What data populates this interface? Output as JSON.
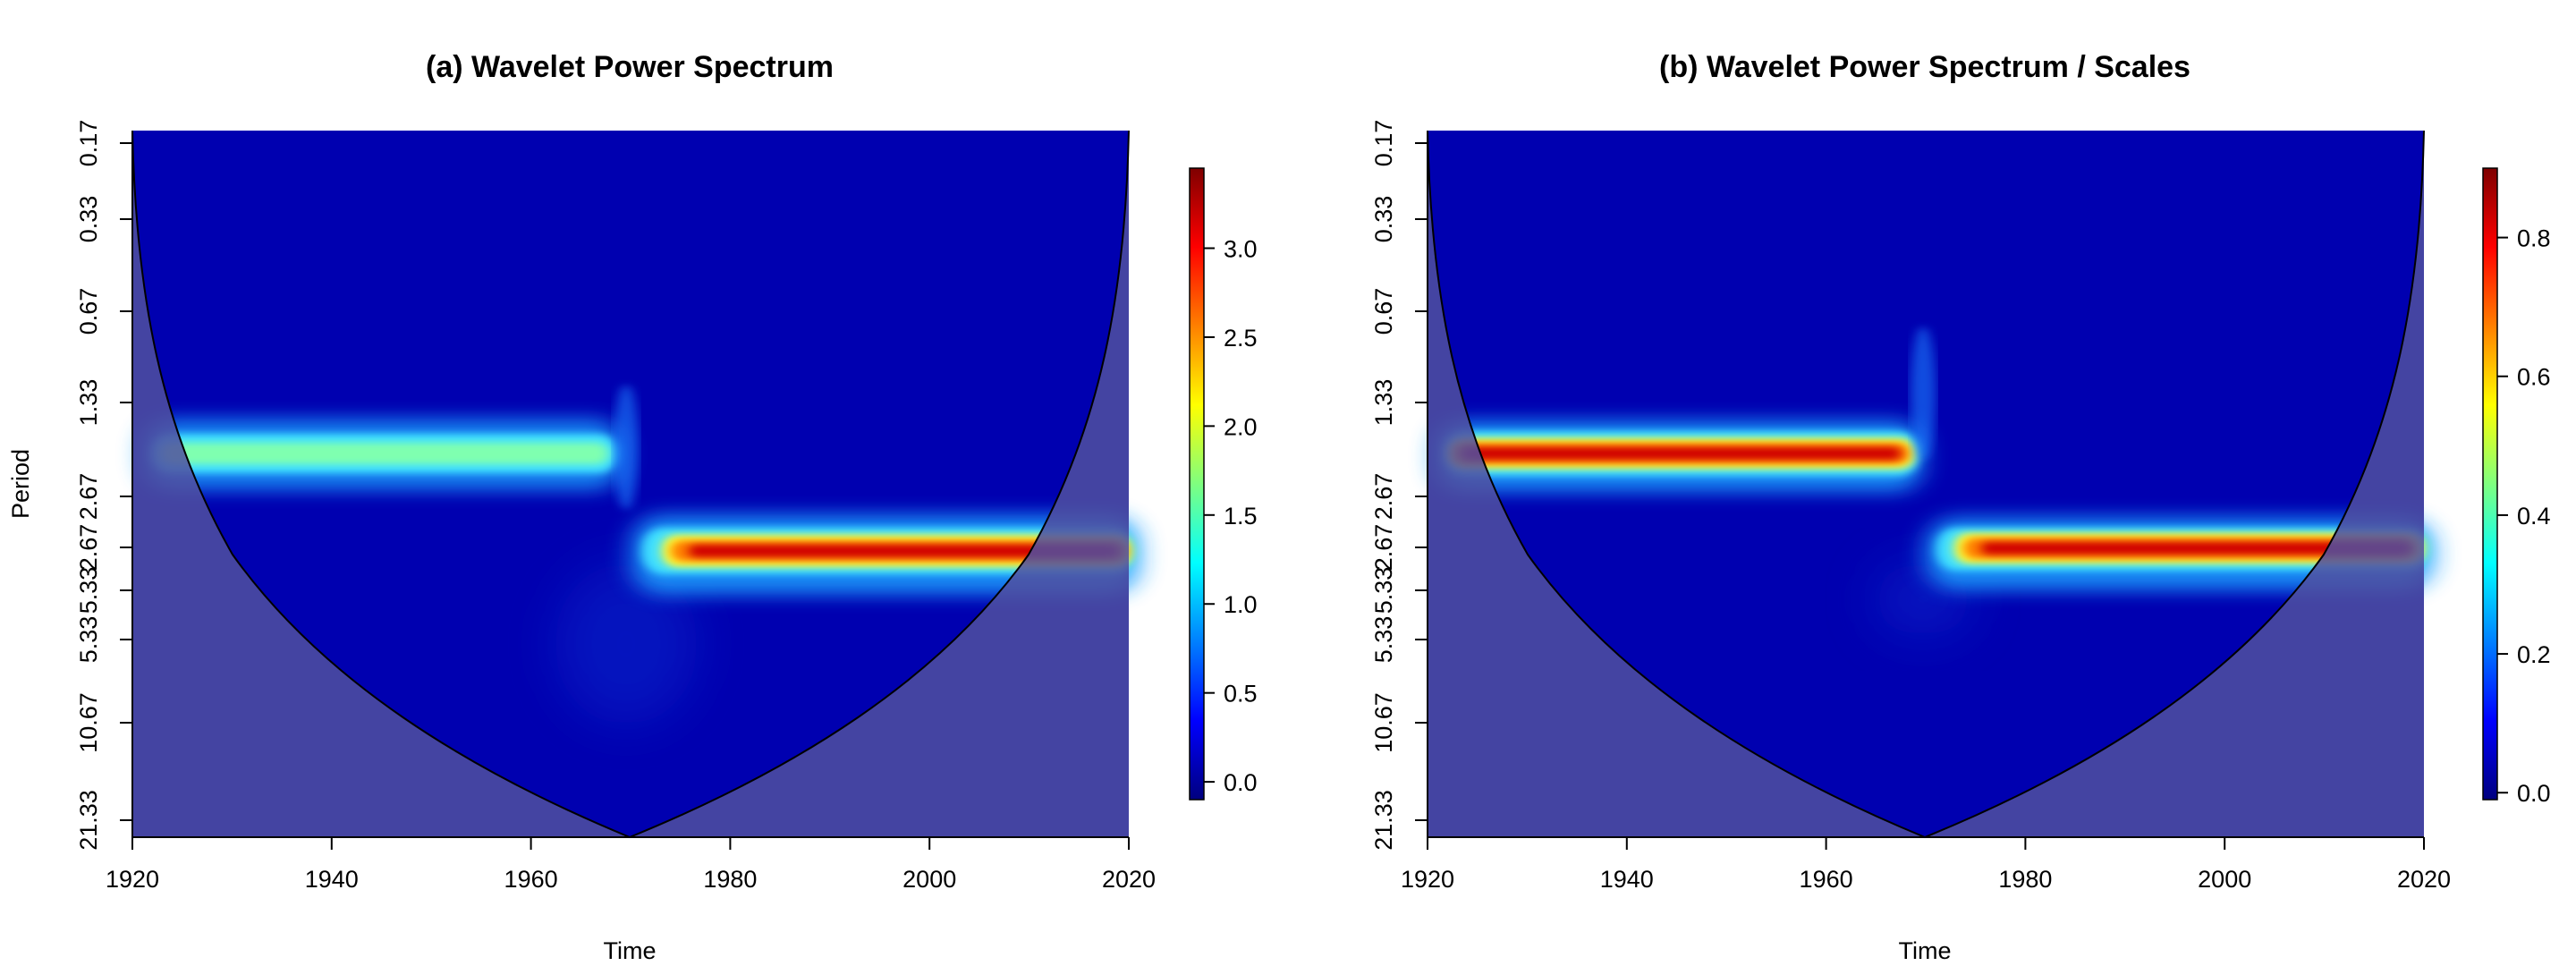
{
  "chart_data": [
    {
      "type": "heatmap",
      "title": "(a) Wavelet Power Spectrum",
      "xlabel": "Time",
      "ylabel": "Period",
      "xlim": [
        1920,
        2020
      ],
      "x_ticks": [
        "1920",
        "1940",
        "1960",
        "1980",
        "2000",
        "2020"
      ],
      "y_ticks": [
        "0.17",
        "0.33",
        "0.67",
        "1.33",
        "2.67",
        "2.67",
        "5.33",
        "5.33",
        "10.67",
        "21.33"
      ],
      "y_scale": "log2 period (downward)",
      "colorbar": {
        "ticks": [
          "0.0",
          "0.5",
          "1.0",
          "1.5",
          "2.0",
          "2.5",
          "3.0"
        ],
        "range": [
          -0.1,
          3.45
        ],
        "colormap": "jet"
      },
      "features": [
        {
          "period": 2.0,
          "x_start": 1921,
          "x_end": 1969,
          "peak_value": 1.6
        },
        {
          "period": 4.0,
          "x_start": 1973,
          "x_end": 2020,
          "peak_value": 3.4
        }
      ],
      "cone_of_influence": {
        "vertex_time": 1970,
        "shaded": true
      }
    },
    {
      "type": "heatmap",
      "title": "(b) Wavelet Power Spectrum / Scales",
      "xlabel": "Time",
      "ylabel": "",
      "xlim": [
        1920,
        2020
      ],
      "x_ticks": [
        "1920",
        "1940",
        "1960",
        "1980",
        "2000",
        "2020"
      ],
      "y_ticks": [
        "0.17",
        "0.33",
        "0.67",
        "1.33",
        "2.67",
        "2.67",
        "5.33",
        "5.33",
        "10.67",
        "21.33"
      ],
      "y_scale": "log2 period (downward)",
      "colorbar": {
        "ticks": [
          "0.0",
          "0.2",
          "0.4",
          "0.6",
          "0.8"
        ],
        "range": [
          -0.01,
          0.9
        ],
        "colormap": "jet"
      },
      "features": [
        {
          "period": 2.0,
          "x_start": 1921,
          "x_end": 1969,
          "peak_value": 0.9
        },
        {
          "period": 4.0,
          "x_start": 1973,
          "x_end": 2020,
          "peak_value": 0.9
        }
      ],
      "cone_of_influence": {
        "vertex_time": 1970,
        "shaded": true
      }
    }
  ],
  "colors": {
    "background_field": "#0000b0",
    "coi_shade": "#4646a0",
    "jet": [
      "#00007f",
      "#0000ff",
      "#007fff",
      "#00ffff",
      "#7fff7f",
      "#ffff00",
      "#ff7f00",
      "#ff0000",
      "#7f0000"
    ]
  }
}
